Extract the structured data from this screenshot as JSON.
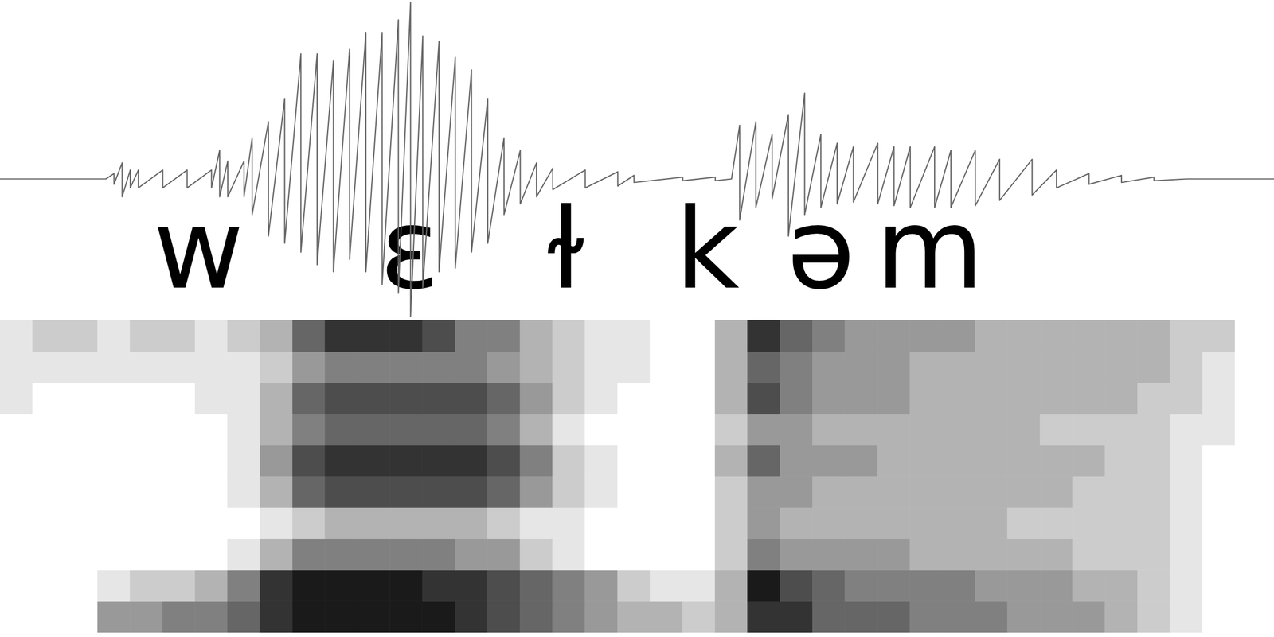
{
  "chart_data": {
    "type": "spectrogram",
    "tick_labels": false,
    "xlim": [
      0,
      784
    ],
    "labels": {
      "text": [
        "w",
        "ɛ",
        "ɫ",
        "k",
        "ə",
        "m"
      ],
      "x": [
        122,
        252,
        348,
        435,
        505,
        572
      ],
      "y": -0.41
    },
    "waveform": {
      "color": "#666666",
      "ylim": [
        -1,
        1
      ],
      "x": [
        0,
        65,
        70,
        75,
        80,
        85,
        100,
        115,
        130,
        135,
        140,
        150,
        155,
        165,
        175,
        185,
        195,
        205,
        215,
        225,
        235,
        245,
        252.5,
        260,
        270,
        280,
        290,
        300,
        310,
        320,
        330,
        340,
        360,
        380,
        390,
        420,
        440,
        450,
        455,
        465,
        475,
        485,
        495,
        505,
        515,
        525,
        540,
        550,
        560,
        575,
        585,
        600,
        615,
        635,
        650,
        670,
        690,
        710,
        730,
        784
      ],
      "max": [
        0,
        0,
        0.03,
        0.09,
        0.05,
        0.05,
        0.05,
        0.05,
        0.05,
        0.16,
        0.1,
        0.1,
        0.23,
        0.32,
        0.45,
        0.7,
        0.7,
        0.66,
        0.73,
        0.82,
        0.82,
        0.89,
        0.99,
        0.8,
        0.77,
        0.68,
        0.61,
        0.45,
        0.23,
        0.16,
        0.09,
        0.06,
        0.05,
        0.04,
        0.02,
        0.01,
        0.01,
        0,
        0.3,
        0.32,
        0.25,
        0.36,
        0.48,
        0.25,
        0.2,
        0.18,
        0.2,
        0.18,
        0.18,
        0.18,
        0.16,
        0.16,
        0.11,
        0.11,
        0.05,
        0.03,
        0.02,
        0.01,
        0,
        0
      ],
      "min": [
        0,
        0,
        -0.03,
        -0.1,
        -0.05,
        -0.05,
        -0.05,
        -0.05,
        -0.05,
        -0.1,
        -0.1,
        -0.1,
        -0.2,
        -0.32,
        -0.36,
        -0.41,
        -0.48,
        -0.52,
        -0.45,
        -0.52,
        -0.59,
        -0.64,
        -0.77,
        -0.61,
        -0.52,
        -0.5,
        -0.41,
        -0.36,
        -0.2,
        -0.14,
        -0.1,
        -0.06,
        -0.05,
        -0.04,
        -0.02,
        -0.01,
        -0.01,
        0,
        -0.23,
        -0.16,
        -0.11,
        -0.32,
        -0.2,
        -0.16,
        -0.14,
        -0.13,
        -0.14,
        -0.15,
        -0.16,
        -0.16,
        -0.16,
        -0.15,
        -0.12,
        -0.09,
        -0.05,
        -0.03,
        -0.02,
        -0.01,
        0,
        0
      ]
    },
    "spectrogram": {
      "ylim": [
        0,
        5
      ],
      "zlim": [
        0,
        1
      ],
      "x_edges": [
        0,
        20,
        40,
        60,
        80,
        100,
        120,
        140,
        160,
        180,
        200,
        220,
        240,
        260,
        280,
        300,
        320,
        340,
        360,
        380,
        400,
        420,
        440,
        460,
        480,
        500,
        520,
        540,
        560,
        580,
        600,
        620,
        640,
        660,
        680,
        700,
        720,
        740,
        760,
        780
      ],
      "y_edges": [
        0,
        0.5,
        1,
        1.5,
        2,
        2.5,
        3,
        3.5,
        4,
        4.5,
        5
      ],
      "cells": [
        [
          0,
          0,
          0,
          0.4,
          0.4,
          0.5,
          0.5,
          0.6,
          0.8,
          0.9,
          0.9,
          0.9,
          0.9,
          0.9,
          0.8,
          0.7,
          0.6,
          0.5,
          0.4,
          0.3,
          0.3,
          0.2,
          0.3,
          0.8,
          0.8,
          0.6,
          0.6,
          0.6,
          0.5,
          0.5,
          0.5,
          0.4,
          0.4,
          0.4,
          0.3,
          0.2,
          0.1,
          0,
          0
        ],
        [
          0,
          0,
          0,
          0.1,
          0.2,
          0.2,
          0.3,
          0.5,
          0.8,
          0.9,
          0.9,
          0.9,
          0.9,
          0.8,
          0.8,
          0.7,
          0.6,
          0.5,
          0.4,
          0.2,
          0.1,
          0.1,
          0.3,
          0.9,
          0.7,
          0.6,
          0.5,
          0.5,
          0.5,
          0.5,
          0.4,
          0.4,
          0.4,
          0.3,
          0.3,
          0.2,
          0.1,
          0,
          0
        ],
        [
          0,
          0,
          0,
          0,
          0,
          0,
          0,
          0.1,
          0.3,
          0.5,
          0.5,
          0.5,
          0.5,
          0.5,
          0.4,
          0.4,
          0.2,
          0.1,
          0,
          0,
          0,
          0,
          0.2,
          0.5,
          0.4,
          0.4,
          0.4,
          0.4,
          0.3,
          0.3,
          0.3,
          0.3,
          0.3,
          0.2,
          0.2,
          0.2,
          0.1,
          0,
          0
        ],
        [
          0,
          0,
          0,
          0,
          0,
          0,
          0,
          0,
          0.1,
          0.2,
          0.3,
          0.3,
          0.3,
          0.3,
          0.3,
          0.2,
          0.1,
          0.1,
          0,
          0,
          0,
          0,
          0.2,
          0.4,
          0.3,
          0.3,
          0.3,
          0.3,
          0.3,
          0.3,
          0.3,
          0.2,
          0.2,
          0.2,
          0.2,
          0.2,
          0.1,
          0,
          0
        ],
        [
          0,
          0,
          0,
          0,
          0,
          0,
          0,
          0.1,
          0.3,
          0.6,
          0.7,
          0.7,
          0.7,
          0.7,
          0.7,
          0.6,
          0.4,
          0.2,
          0.1,
          0,
          0,
          0,
          0.2,
          0.4,
          0.4,
          0.3,
          0.3,
          0.3,
          0.3,
          0.3,
          0.3,
          0.3,
          0.3,
          0.2,
          0.2,
          0.2,
          0.1,
          0,
          0
        ],
        [
          0,
          0,
          0,
          0,
          0,
          0,
          0,
          0.1,
          0.4,
          0.7,
          0.8,
          0.8,
          0.8,
          0.8,
          0.8,
          0.7,
          0.5,
          0.2,
          0.1,
          0,
          0,
          0,
          0.3,
          0.6,
          0.4,
          0.4,
          0.4,
          0.3,
          0.3,
          0.3,
          0.3,
          0.3,
          0.3,
          0.3,
          0.2,
          0.2,
          0.1,
          0,
          0
        ],
        [
          0,
          0,
          0,
          0,
          0,
          0,
          0,
          0.1,
          0.3,
          0.5,
          0.6,
          0.6,
          0.6,
          0.6,
          0.6,
          0.5,
          0.3,
          0.1,
          0,
          0,
          0,
          0,
          0.2,
          0.4,
          0.4,
          0.3,
          0.3,
          0.3,
          0.3,
          0.3,
          0.3,
          0.3,
          0.2,
          0.2,
          0.2,
          0.2,
          0.1,
          0.1,
          0
        ],
        [
          0.1,
          0,
          0,
          0,
          0,
          0,
          0.1,
          0.1,
          0.3,
          0.6,
          0.7,
          0.7,
          0.7,
          0.7,
          0.7,
          0.6,
          0.4,
          0.2,
          0.1,
          0,
          0,
          0,
          0.3,
          0.7,
          0.5,
          0.4,
          0.4,
          0.4,
          0.3,
          0.3,
          0.3,
          0.3,
          0.3,
          0.3,
          0.3,
          0.2,
          0.2,
          0.1,
          0
        ],
        [
          0.1,
          0.1,
          0.1,
          0.1,
          0.1,
          0.1,
          0.1,
          0.1,
          0.2,
          0.4,
          0.5,
          0.5,
          0.5,
          0.5,
          0.5,
          0.4,
          0.3,
          0.2,
          0.1,
          0.1,
          0,
          0,
          0.3,
          0.6,
          0.5,
          0.4,
          0.4,
          0.4,
          0.3,
          0.3,
          0.3,
          0.3,
          0.3,
          0.3,
          0.3,
          0.3,
          0.2,
          0.1,
          0
        ],
        [
          0.1,
          0.2,
          0.2,
          0.1,
          0.2,
          0.2,
          0.1,
          0.2,
          0.3,
          0.6,
          0.8,
          0.8,
          0.8,
          0.7,
          0.5,
          0.5,
          0.3,
          0.2,
          0.1,
          0.1,
          0,
          0,
          0.3,
          0.8,
          0.6,
          0.5,
          0.4,
          0.4,
          0.4,
          0.4,
          0.3,
          0.3,
          0.3,
          0.3,
          0.3,
          0.3,
          0.2,
          0.2,
          0
        ]
      ]
    }
  }
}
